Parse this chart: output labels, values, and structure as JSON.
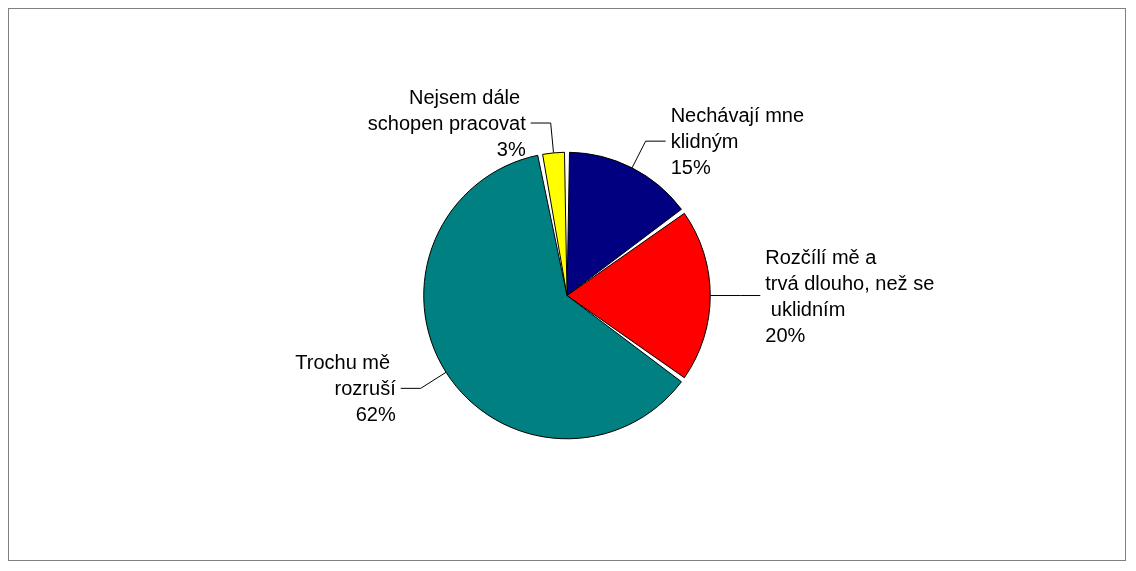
{
  "chart_data": {
    "type": "pie",
    "categories": [
      "Nechávají mne klidným",
      "Rozčílí mě a trvá dlouho, než se uklidním",
      "Trochu mě rozruší",
      "Nejsem dále schopen pracovat"
    ],
    "values": [
      15,
      20,
      62,
      3
    ],
    "value_labels": [
      "15%",
      "20%",
      "62%",
      "3%"
    ],
    "colors": [
      "#000080",
      "#ff0000",
      "#008080",
      "#ffff00"
    ],
    "legend": false
  }
}
